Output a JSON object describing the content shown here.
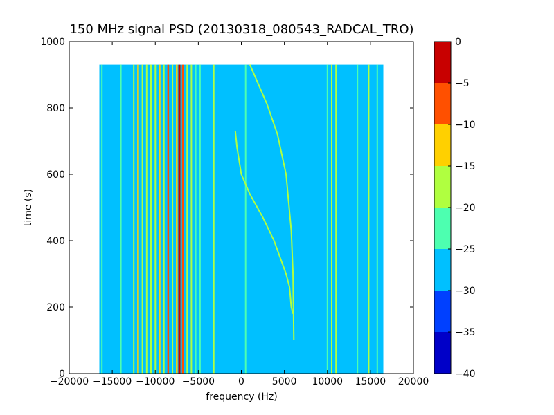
{
  "chart_data": {
    "type": "heatmap",
    "title": "150 MHz signal PSD (20130318_080543_RADCAL_TRO)",
    "xlabel": "frequency (Hz)",
    "ylabel": "time (s)",
    "xlim": [
      -20000,
      20000
    ],
    "ylim": [
      0,
      1000
    ],
    "x_ticks": [
      -20000,
      -15000,
      -10000,
      -5000,
      0,
      5000,
      10000,
      15000,
      20000
    ],
    "y_ticks": [
      0,
      200,
      400,
      600,
      800,
      1000
    ],
    "data_extent": {
      "x": [
        -16500,
        16500
      ],
      "y": [
        0,
        930
      ]
    },
    "background_level": -27.5,
    "colorbar": {
      "levels": [
        -40,
        -35,
        -30,
        -25,
        -20,
        -15,
        -10,
        -5,
        0
      ],
      "colors": [
        "#0000c8",
        "#0040ff",
        "#00c0ff",
        "#4dffb0",
        "#b0ff40",
        "#ffd000",
        "#ff5000",
        "#c80000"
      ]
    },
    "series": [
      {
        "x": [
          -16200,
          -16200
        ],
        "t": [
          0,
          930
        ],
        "level": -22.5
      },
      {
        "x": [
          -14000,
          -14000
        ],
        "t": [
          0,
          930
        ],
        "level": -22.5
      },
      {
        "x": [
          -12500,
          -12500
        ],
        "t": [
          0,
          930
        ],
        "level": -17.5
      },
      {
        "x": [
          -12000,
          -12000
        ],
        "t": [
          0,
          930
        ],
        "level": -12.5
      },
      {
        "x": [
          -11500,
          -11500
        ],
        "t": [
          0,
          930
        ],
        "level": -17.5
      },
      {
        "x": [
          -11000,
          -11000
        ],
        "t": [
          0,
          930
        ],
        "level": -17.5
      },
      {
        "x": [
          -10500,
          -10500
        ],
        "t": [
          0,
          930
        ],
        "level": -17.5
      },
      {
        "x": [
          -10000,
          -10000
        ],
        "t": [
          0,
          930
        ],
        "level": -17.5
      },
      {
        "x": [
          -9500,
          -9500
        ],
        "t": [
          0,
          930
        ],
        "level": -12.5
      },
      {
        "x": [
          -9000,
          -9000
        ],
        "t": [
          0,
          930
        ],
        "level": -17.5
      },
      {
        "x": [
          -8500,
          -8500
        ],
        "t": [
          0,
          930
        ],
        "level": -7.5
      },
      {
        "x": [
          -8000,
          -8000
        ],
        "t": [
          0,
          930
        ],
        "level": -17.5
      },
      {
        "x": [
          -7500,
          -7500
        ],
        "t": [
          0,
          930
        ],
        "level": -12.5
      },
      {
        "x": [
          -7200,
          -7200
        ],
        "t": [
          0,
          930
        ],
        "level": -2.5
      },
      {
        "x": [
          -6800,
          -6800
        ],
        "t": [
          0,
          930
        ],
        "level": -7.5
      },
      {
        "x": [
          -6300,
          -6300
        ],
        "t": [
          0,
          930
        ],
        "level": -17.5
      },
      {
        "x": [
          -5800,
          -5800
        ],
        "t": [
          0,
          930
        ],
        "level": -17.5
      },
      {
        "x": [
          -5300,
          -5300
        ],
        "t": [
          0,
          930
        ],
        "level": -22.5
      },
      {
        "x": [
          -4800,
          -4800
        ],
        "t": [
          0,
          930
        ],
        "level": -22.5
      },
      {
        "x": [
          -3200,
          -3200
        ],
        "t": [
          0,
          930
        ],
        "level": -17.5
      },
      {
        "x": [
          500,
          500
        ],
        "t": [
          0,
          930
        ],
        "level": -22.5
      },
      {
        "x": [
          10000,
          10000
        ],
        "t": [
          0,
          930
        ],
        "level": -22.5
      },
      {
        "x": [
          10500,
          10500
        ],
        "t": [
          0,
          930
        ],
        "level": -17.5
      },
      {
        "x": [
          11000,
          11000
        ],
        "t": [
          0,
          930
        ],
        "level": -17.5
      },
      {
        "x": [
          13500,
          13500
        ],
        "t": [
          0,
          930
        ],
        "level": -22.5
      },
      {
        "x": [
          14800,
          14800
        ],
        "t": [
          0,
          930
        ],
        "level": -17.5
      },
      {
        "x": [
          15800,
          15800
        ],
        "t": [
          0,
          930
        ],
        "level": -22.5
      },
      {
        "x": [
          1000,
          3000,
          4200,
          5200,
          5800,
          6000,
          6100
        ],
        "t": [
          930,
          810,
          720,
          600,
          430,
          300,
          100
        ],
        "level": -17.5
      },
      {
        "x": [
          -700,
          -500,
          0,
          1000,
          2500,
          3800,
          5200,
          5600,
          5800,
          6000
        ],
        "t": [
          730,
          680,
          600,
          540,
          470,
          400,
          300,
          260,
          200,
          180
        ],
        "level": -17.5
      }
    ]
  }
}
